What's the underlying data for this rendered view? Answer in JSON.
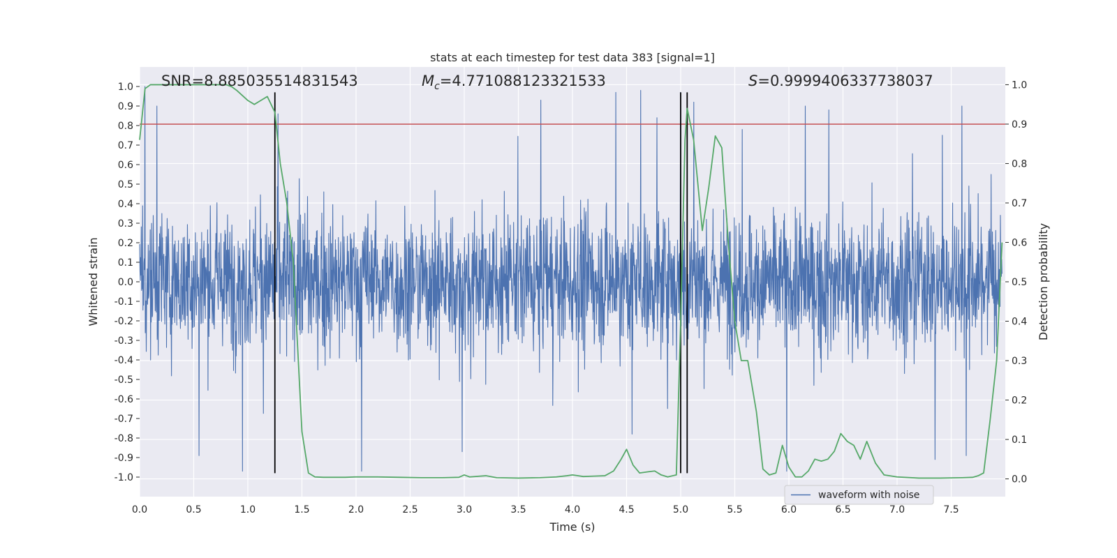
{
  "chart_data": {
    "type": "line",
    "title": "stats at each timestep for test data 383 [signal=1]",
    "xlabel": "Time (s)",
    "ylabel_left": "Whitened strain",
    "ylabel_right": "Detection probability",
    "xlim": [
      0.0,
      8.0
    ],
    "ylim_left": [
      -1.1,
      1.1
    ],
    "ylim_right": [
      -0.045,
      1.045
    ],
    "x_ticks": [
      "0.0",
      "0.5",
      "1.0",
      "1.5",
      "2.0",
      "2.5",
      "3.0",
      "3.5",
      "4.0",
      "4.5",
      "5.0",
      "5.5",
      "6.0",
      "6.5",
      "7.0",
      "7.5"
    ],
    "y_left_ticks": [
      "-1.0",
      "-0.9",
      "-0.8",
      "-0.7",
      "-0.6",
      "-0.5",
      "-0.4",
      "-0.3",
      "-0.2",
      "-0.1",
      "0.0",
      "0.1",
      "0.2",
      "0.3",
      "0.4",
      "0.5",
      "0.6",
      "0.7",
      "0.8",
      "0.9",
      "1.0"
    ],
    "y_right_ticks": [
      "0.0",
      "0.1",
      "0.2",
      "0.3",
      "0.4",
      "0.5",
      "0.6",
      "0.7",
      "0.8",
      "0.9",
      "1.0"
    ],
    "grid": true,
    "legend": {
      "position": "lower-center-right",
      "entries": [
        "waveform with noise"
      ]
    },
    "annotations": {
      "snr": "SNR=8.885035514831543",
      "mc_symbol": "M",
      "mc_sub": "c",
      "mc_value": "=4.771088123321533",
      "s_symbol": "S",
      "s_value": "=0.9999406337738037"
    },
    "threshold_line": {
      "y_right": 0.9,
      "color": "#c44e52"
    },
    "vertical_lines_x": [
      1.25,
      5.0,
      5.06
    ],
    "series": [
      {
        "name": "waveform with noise",
        "axis": "left",
        "color": "#4c72b0",
        "style": "dense noise",
        "core_amplitude": 0.4,
        "spike_extremes": [
          {
            "x": 0.05,
            "y": 1.0
          },
          {
            "x": 0.16,
            "y": 0.9
          },
          {
            "x": 0.55,
            "y": -0.89
          },
          {
            "x": 0.95,
            "y": -0.97
          },
          {
            "x": 1.28,
            "y": 0.86
          },
          {
            "x": 2.05,
            "y": -0.97
          },
          {
            "x": 2.98,
            "y": -0.87
          },
          {
            "x": 4.4,
            "y": 0.97
          },
          {
            "x": 4.55,
            "y": -0.78
          },
          {
            "x": 4.63,
            "y": 0.98
          },
          {
            "x": 4.78,
            "y": 0.84
          },
          {
            "x": 5.0,
            "y": 0.97
          },
          {
            "x": 5.12,
            "y": 0.92
          },
          {
            "x": 5.57,
            "y": 0.78
          },
          {
            "x": 5.98,
            "y": -0.97
          },
          {
            "x": 6.15,
            "y": 0.9
          },
          {
            "x": 6.37,
            "y": 0.88
          },
          {
            "x": 7.35,
            "y": -0.91
          },
          {
            "x": 7.6,
            "y": 0.9
          },
          {
            "x": 7.64,
            "y": -0.89
          },
          {
            "x": 7.87,
            "y": 0.55
          }
        ]
      },
      {
        "name": "detection probability",
        "axis": "right",
        "color": "#55a868",
        "x": [
          0.0,
          0.05,
          0.1,
          0.2,
          0.3,
          0.4,
          0.5,
          0.6,
          0.7,
          0.8,
          0.85,
          0.9,
          1.0,
          1.06,
          1.12,
          1.18,
          1.25,
          1.3,
          1.36,
          1.42,
          1.5,
          1.56,
          1.62,
          1.7,
          1.8,
          1.9,
          2.0,
          2.2,
          2.4,
          2.6,
          2.8,
          2.95,
          3.0,
          3.05,
          3.2,
          3.3,
          3.5,
          3.7,
          3.85,
          3.95,
          4.0,
          4.1,
          4.2,
          4.3,
          4.38,
          4.45,
          4.5,
          4.56,
          4.62,
          4.7,
          4.76,
          4.82,
          4.88,
          4.96,
          5.0,
          5.04,
          5.06,
          5.12,
          5.2,
          5.26,
          5.32,
          5.38,
          5.44,
          5.5,
          5.56,
          5.62,
          5.7,
          5.76,
          5.82,
          5.88,
          5.94,
          6.0,
          6.06,
          6.12,
          6.18,
          6.24,
          6.3,
          6.36,
          6.42,
          6.48,
          6.54,
          6.6,
          6.66,
          6.72,
          6.8,
          6.88,
          7.0,
          7.2,
          7.4,
          7.6,
          7.7,
          7.75,
          7.8,
          7.86,
          7.92,
          7.97
        ],
        "y": [
          0.86,
          0.99,
          1.0,
          1.0,
          1.0,
          1.0,
          1.0,
          1.0,
          1.0,
          1.0,
          0.995,
          0.985,
          0.96,
          0.95,
          0.96,
          0.97,
          0.93,
          0.8,
          0.7,
          0.55,
          0.12,
          0.015,
          0.005,
          0.004,
          0.004,
          0.004,
          0.005,
          0.005,
          0.004,
          0.003,
          0.003,
          0.004,
          0.01,
          0.005,
          0.008,
          0.003,
          0.002,
          0.003,
          0.005,
          0.008,
          0.01,
          0.006,
          0.007,
          0.008,
          0.02,
          0.05,
          0.075,
          0.035,
          0.015,
          0.018,
          0.02,
          0.01,
          0.005,
          0.01,
          0.4,
          0.86,
          0.94,
          0.86,
          0.63,
          0.74,
          0.87,
          0.84,
          0.6,
          0.4,
          0.3,
          0.3,
          0.17,
          0.025,
          0.01,
          0.015,
          0.085,
          0.03,
          0.005,
          0.005,
          0.02,
          0.05,
          0.045,
          0.05,
          0.07,
          0.115,
          0.095,
          0.085,
          0.05,
          0.095,
          0.04,
          0.01,
          0.005,
          0.002,
          0.002,
          0.003,
          0.004,
          0.008,
          0.015,
          0.15,
          0.3,
          0.6
        ]
      }
    ]
  }
}
